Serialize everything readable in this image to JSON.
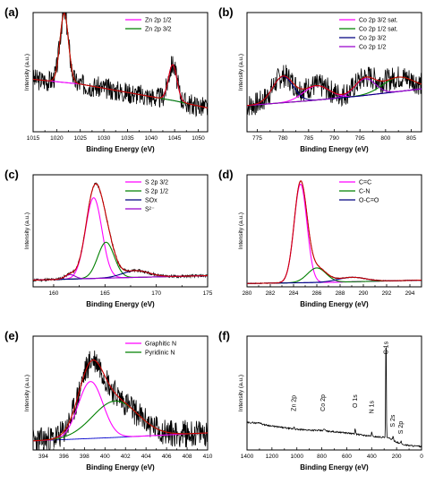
{
  "chart_data": [
    {
      "id": "a",
      "panel_label": "(a)",
      "type": "line",
      "xlabel": "Binding Energy (eV)",
      "ylabel": "Intensity (a.u.)",
      "xlim": [
        1015,
        1052
      ],
      "ylim": [
        0,
        100
      ],
      "xticks": [
        1015,
        1020,
        1025,
        1030,
        1035,
        1040,
        1045,
        1050
      ],
      "legend_position": "top-right",
      "noise": {
        "amp": 9,
        "seed": 3
      },
      "background": [
        [
          1015,
          44
        ],
        [
          1025,
          40
        ],
        [
          1035,
          33
        ],
        [
          1045,
          26
        ],
        [
          1052,
          20
        ]
      ],
      "series": [
        {
          "name": "Zn 2p 1/2",
          "color": "#ff00ff",
          "peaks": [
            [
              1044.6,
              30,
              0.9
            ]
          ]
        },
        {
          "name": "Zn 2p 3/2",
          "color": "#008000",
          "peaks": [
            [
              1021.6,
              58,
              0.9
            ]
          ]
        }
      ]
    },
    {
      "id": "b",
      "panel_label": "(b)",
      "type": "line",
      "xlabel": "Binding Energy (eV)",
      "ylabel": "Intensity (a.u.)",
      "xlim": [
        773,
        807
      ],
      "ylim": [
        0,
        100
      ],
      "xticks": [
        775,
        780,
        785,
        790,
        795,
        800,
        805
      ],
      "legend_position": "top-right",
      "noise": {
        "amp": 10,
        "seed": 7
      },
      "background": [
        [
          773,
          22
        ],
        [
          785,
          26
        ],
        [
          795,
          30
        ],
        [
          807,
          36
        ]
      ],
      "series": [
        {
          "name": "Co 2p 3/2 sat.",
          "color": "#ff00ff",
          "peaks": [
            [
              786.5,
              12,
              2.5
            ]
          ]
        },
        {
          "name": "Co 2p 1/2 sat.",
          "color": "#008000",
          "peaks": [
            [
              802.5,
              12,
              3
            ]
          ]
        },
        {
          "name": "Co 2p 3/2",
          "color": "#000080",
          "peaks": [
            [
              780,
              22,
              2
            ]
          ]
        },
        {
          "name": "Co 2p 1/2",
          "color": "#9900cc",
          "peaks": [
            [
              796,
              14,
              2
            ]
          ]
        }
      ]
    },
    {
      "id": "c",
      "panel_label": "(c)",
      "type": "line",
      "xlabel": "Binding Energy (eV)",
      "ylabel": "Intensity (a.u.)",
      "xlim": [
        158,
        175
      ],
      "ylim": [
        0,
        100
      ],
      "xticks": [
        160,
        165,
        170,
        175
      ],
      "legend_position": "top-right",
      "noise": {
        "amp": 1.2,
        "seed": 11
      },
      "background": [
        [
          158,
          6
        ],
        [
          166,
          8
        ],
        [
          175,
          10
        ]
      ],
      "series": [
        {
          "name": "S 2p 3/2",
          "color": "#ff00ff",
          "peaks": [
            [
              163.9,
              72,
              0.8
            ]
          ]
        },
        {
          "name": "S 2p 1/2",
          "color": "#008000",
          "peaks": [
            [
              165.1,
              32,
              0.8
            ]
          ]
        },
        {
          "name": "SOx",
          "color": "#000080",
          "peaks": [
            [
              168,
              6,
              1.3
            ]
          ]
        },
        {
          "name": "S²⁻",
          "color": "#9900cc",
          "peaks": [
            [
              161.6,
              4,
              0.5
            ]
          ]
        }
      ]
    },
    {
      "id": "d",
      "panel_label": "(d)",
      "type": "line",
      "xlabel": "Binding Energy (eV)",
      "ylabel": "Intensity (a.u.)",
      "xlim": [
        280,
        295
      ],
      "ylim": [
        0,
        100
      ],
      "xticks": [
        280,
        282,
        284,
        286,
        288,
        290,
        292,
        294
      ],
      "legend_position": "top-right",
      "noise": {
        "amp": 0.4,
        "seed": 17
      },
      "background": [
        [
          280,
          3
        ],
        [
          287,
          4
        ],
        [
          295,
          6
        ]
      ],
      "series": [
        {
          "name": "C=C",
          "color": "#ff00ff",
          "peaks": [
            [
              284.6,
              88,
              0.55
            ]
          ]
        },
        {
          "name": "C-N",
          "color": "#008000",
          "peaks": [
            [
              286,
              13,
              0.8
            ]
          ]
        },
        {
          "name": "O-C=O",
          "color": "#000080",
          "peaks": [
            [
              289,
              4,
              1.2
            ]
          ]
        }
      ]
    },
    {
      "id": "e",
      "panel_label": "(e)",
      "type": "line",
      "xlabel": "Binding Energy (eV)",
      "ylabel": "Intensity (a.u.)",
      "xlim": [
        393,
        410
      ],
      "ylim": [
        0,
        100
      ],
      "xticks": [
        394,
        396,
        398,
        400,
        402,
        404,
        406,
        408,
        410
      ],
      "legend_position": "top-right",
      "noise": {
        "amp": 12,
        "seed": 23
      },
      "background": [
        [
          393,
          8
        ],
        [
          401,
          11
        ],
        [
          410,
          15
        ]
      ],
      "series": [
        {
          "name": "Graphitic N",
          "color": "#ff00ff",
          "peaks": [
            [
              398.6,
              50,
              1.2
            ]
          ]
        },
        {
          "name": "Pyridinic N",
          "color": "#008000",
          "peaks": [
            [
              401,
              32,
              2.2
            ]
          ]
        }
      ]
    },
    {
      "id": "f",
      "panel_label": "(f)",
      "type": "line",
      "xlabel": "Binding Energy (eV)",
      "ylabel": "Intensity (a.u.)",
      "xlim": [
        1400,
        0
      ],
      "ylim": [
        0,
        100
      ],
      "xticks": [
        1400,
        1200,
        1000,
        800,
        600,
        400,
        200,
        0
      ],
      "noise": {
        "amp": 0.6,
        "seed": 29
      },
      "survey": [
        [
          1350,
          24
        ],
        [
          1200,
          21
        ],
        [
          1000,
          18
        ],
        [
          800,
          17
        ],
        [
          600,
          15
        ],
        [
          400,
          12
        ],
        [
          290,
          11
        ],
        [
          250,
          10
        ],
        [
          200,
          7
        ],
        [
          160,
          5
        ],
        [
          100,
          4
        ],
        [
          0,
          3
        ]
      ],
      "survey_peaks": [
        [
          1300,
          1,
          12
        ],
        [
          1022,
          2,
          4
        ],
        [
          780,
          1.5,
          6
        ],
        [
          532,
          5,
          3
        ],
        [
          400,
          4,
          3
        ],
        [
          285,
          98,
          2.5
        ],
        [
          228,
          3,
          3
        ],
        [
          164,
          3,
          3
        ]
      ],
      "peak_labels": [
        {
          "text": "Zn 2p",
          "x": 1022,
          "y": 34
        },
        {
          "text": "Co 2p",
          "x": 790,
          "y": 34
        },
        {
          "text": "O 1s",
          "x": 532,
          "y": 37
        },
        {
          "text": "N 1s",
          "x": 400,
          "y": 32
        },
        {
          "text": "C 1s",
          "x": 285,
          "y": 84
        },
        {
          "text": "S 2s",
          "x": 230,
          "y": 20
        },
        {
          "text": "S 2p",
          "x": 164,
          "y": 14
        }
      ]
    }
  ]
}
